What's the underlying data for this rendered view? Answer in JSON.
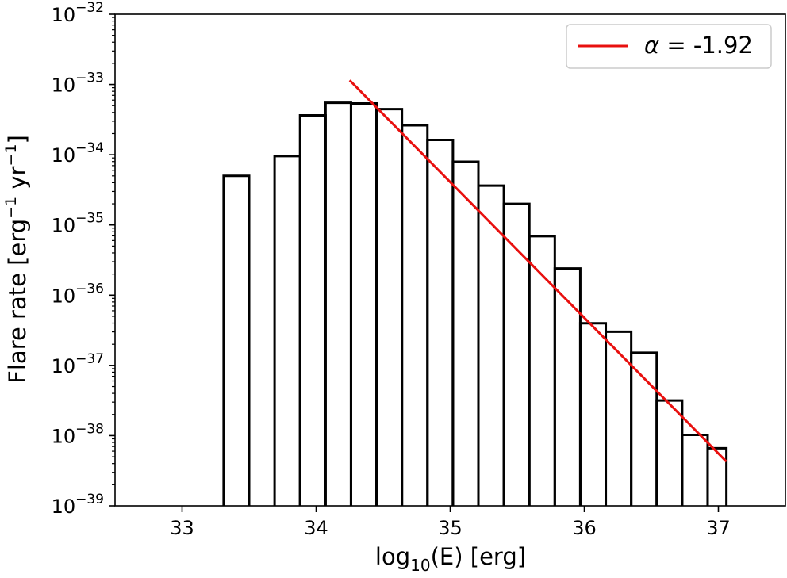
{
  "chart_data": {
    "type": "histogram",
    "xlabel": {
      "prefix": "log",
      "subscript": "10",
      "suffix": "(E) [erg]"
    },
    "ylabel": {
      "p1": "Flare rate [erg",
      "sup1": "−1",
      "p2": " yr",
      "sup2": "−1",
      "p3": "]"
    },
    "xlim": [
      32.5,
      37.5
    ],
    "ylim_log10": [
      -39,
      -32
    ],
    "y_scale": "log",
    "x_ticks": [
      {
        "value": 33,
        "label": "33"
      },
      {
        "value": 34,
        "label": "34"
      },
      {
        "value": 35,
        "label": "35"
      },
      {
        "value": 36,
        "label": "36"
      },
      {
        "value": 37,
        "label": "37"
      }
    ],
    "y_ticks": [
      {
        "exp": -39,
        "base": "10",
        "sup": "−39"
      },
      {
        "exp": -38,
        "base": "10",
        "sup": "−38"
      },
      {
        "exp": -37,
        "base": "10",
        "sup": "−37"
      },
      {
        "exp": -36,
        "base": "10",
        "sup": "−36"
      },
      {
        "exp": -35,
        "base": "10",
        "sup": "−35"
      },
      {
        "exp": -34,
        "base": "10",
        "sup": "−34"
      },
      {
        "exp": -33,
        "base": "10",
        "sup": "−33"
      },
      {
        "exp": -32,
        "base": "10",
        "sup": "−32"
      }
    ],
    "histogram": {
      "color": "#000000",
      "bins": [
        {
          "x0": 33.31,
          "x1": 33.5,
          "log10_rate": -34.3
        },
        {
          "x0": 33.5,
          "x1": 33.69,
          "log10_rate": null
        },
        {
          "x0": 33.69,
          "x1": 33.88,
          "log10_rate": -34.02
        },
        {
          "x0": 33.88,
          "x1": 34.07,
          "log10_rate": -33.44
        },
        {
          "x0": 34.07,
          "x1": 34.26,
          "log10_rate": -33.26
        },
        {
          "x0": 34.26,
          "x1": 34.45,
          "log10_rate": -33.27
        },
        {
          "x0": 34.45,
          "x1": 34.64,
          "log10_rate": -33.35
        },
        {
          "x0": 34.64,
          "x1": 34.83,
          "log10_rate": -33.58
        },
        {
          "x0": 34.83,
          "x1": 35.02,
          "log10_rate": -33.79
        },
        {
          "x0": 35.02,
          "x1": 35.21,
          "log10_rate": -34.1
        },
        {
          "x0": 35.21,
          "x1": 35.4,
          "log10_rate": -34.44
        },
        {
          "x0": 35.4,
          "x1": 35.59,
          "log10_rate": -34.7
        },
        {
          "x0": 35.59,
          "x1": 35.78,
          "log10_rate": -35.16
        },
        {
          "x0": 35.78,
          "x1": 35.97,
          "log10_rate": -35.62
        },
        {
          "x0": 35.97,
          "x1": 36.16,
          "log10_rate": -36.4
        },
        {
          "x0": 36.16,
          "x1": 36.35,
          "log10_rate": -36.52
        },
        {
          "x0": 36.35,
          "x1": 36.54,
          "log10_rate": -36.82
        },
        {
          "x0": 36.54,
          "x1": 36.73,
          "log10_rate": -37.5
        },
        {
          "x0": 36.73,
          "x1": 36.92,
          "log10_rate": -37.99
        },
        {
          "x0": 36.92,
          "x1": 37.06,
          "log10_rate": -38.18
        }
      ]
    },
    "fit_line": {
      "color": "#e8100f",
      "x": [
        34.25,
        37.06
      ],
      "log10_rate": [
        -32.94,
        -38.37
      ]
    },
    "legend": {
      "position": "top-right",
      "entries": [
        {
          "symbol": "α",
          "text": " = -1.92",
          "color": "#e8100f"
        }
      ]
    }
  }
}
